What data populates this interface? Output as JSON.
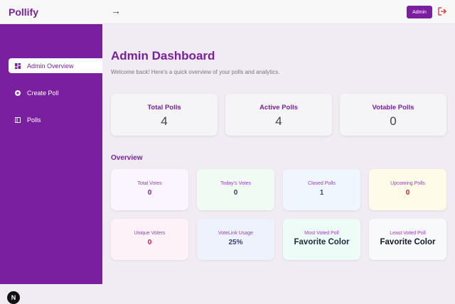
{
  "app": {
    "title": "Pollify",
    "collapse_icon": "arrow-right-icon",
    "admin_label": "Admin",
    "logout_icon": "logout-icon",
    "next_badge": "N"
  },
  "sidebar": {
    "items": [
      {
        "label": "Admin Overview",
        "icon": "dashboard-icon",
        "active": true
      },
      {
        "label": "Create Poll",
        "icon": "plus-circle-icon"
      },
      {
        "label": "Polls",
        "icon": "list-icon"
      }
    ]
  },
  "main": {
    "title": "Admin Dashboard",
    "subtitle": "Welcome back! Here's a quick overview of your polls and analytics.",
    "summary": [
      {
        "label": "Total Polls",
        "value": "4"
      },
      {
        "label": "Active Polls",
        "value": "4"
      },
      {
        "label": "Votable Polls",
        "value": "0"
      }
    ],
    "overview_title": "Overview",
    "cards": [
      {
        "label": "Total Votes",
        "value": "0",
        "bg": "#faf5fe",
        "color": "#7a1fa0"
      },
      {
        "label": "Today's Votes",
        "value": "0",
        "bg": "#f0fcf3",
        "color": "#334155"
      },
      {
        "label": "Closed Polls",
        "value": "1",
        "bg": "#eff6fe",
        "color": "#334e68"
      },
      {
        "label": "Upcoming Polls",
        "value": "0",
        "bg": "#fefbe8",
        "color": "#c0262d"
      },
      {
        "label": "Unique Voters",
        "value": "0",
        "bg": "#fdf2f7",
        "color": "#c81e4a"
      },
      {
        "label": "VoteLink Usage",
        "value": "25%",
        "bg": "#eef2fd",
        "color": "#3b3f6e"
      },
      {
        "label": "Most Voted Poll",
        "value": "Favorite Color",
        "bg": "#eefcf8",
        "color": "#1f2937"
      },
      {
        "label": "Least Voted Poll",
        "value": "Favorite Color",
        "bg": "#f8f9fa",
        "color": "#111827"
      }
    ]
  }
}
